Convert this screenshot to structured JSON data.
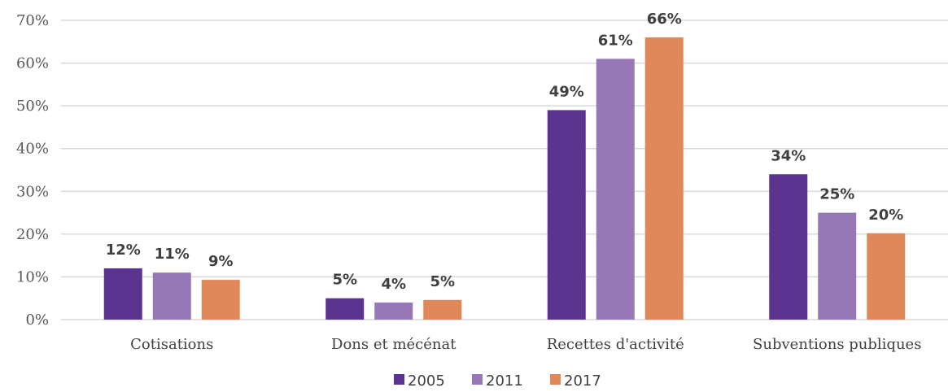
{
  "chart_data": {
    "type": "bar",
    "categories": [
      "Cotisations",
      "Dons et mécénat",
      "Recettes d'activité",
      "Subventions publiques"
    ],
    "series": [
      {
        "name": "2005",
        "values": [
          12,
          5,
          49,
          34
        ],
        "labels": [
          "12%",
          "5%",
          "49%",
          "34%"
        ],
        "color": "#5b3490"
      },
      {
        "name": "2011",
        "values": [
          11,
          4,
          61,
          25
        ],
        "labels": [
          "11%",
          "4%",
          "61%",
          "25%"
        ],
        "color": "#9678b6"
      },
      {
        "name": "2017",
        "values": [
          9.3,
          4.6,
          66,
          20.2
        ],
        "labels": [
          "9%",
          "5%",
          "66%",
          "20%"
        ],
        "color": "#e0885a"
      }
    ],
    "yticks": [
      "0%",
      "10%",
      "20%",
      "30%",
      "40%",
      "50%",
      "60%",
      "70%"
    ],
    "ylim": [
      0,
      70
    ],
    "grid": true,
    "legend_position": "bottom"
  }
}
